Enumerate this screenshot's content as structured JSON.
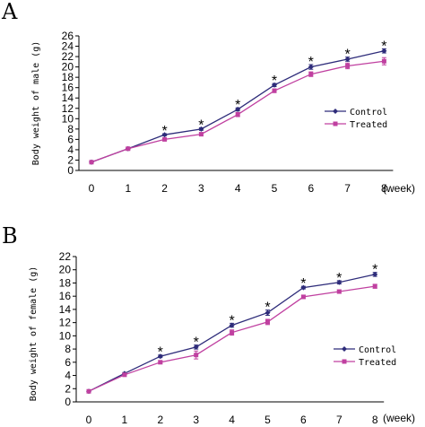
{
  "colors": {
    "control": "#2E2C7A",
    "treated": "#C040A0",
    "axis": "#000000"
  },
  "chart_data": [
    {
      "type": "line",
      "panel": "A",
      "xunit": "(week)",
      "ylabel": "Body weight of male (g)",
      "x": [
        0,
        1,
        2,
        3,
        4,
        5,
        6,
        7,
        8
      ],
      "ylim": [
        0,
        26
      ],
      "yticks": [
        0,
        2,
        4,
        6,
        8,
        10,
        12,
        14,
        16,
        18,
        20,
        22,
        24,
        26
      ],
      "legend": "right",
      "series": [
        {
          "name": "Control",
          "values": [
            1.6,
            4.2,
            6.9,
            8.0,
            11.8,
            16.5,
            20.0,
            21.5,
            23.1
          ],
          "errors": [
            0.15,
            0.15,
            0.2,
            0.25,
            0.3,
            0.3,
            0.45,
            0.4,
            0.4
          ]
        },
        {
          "name": "Treated",
          "values": [
            1.6,
            4.2,
            6.0,
            7.0,
            10.8,
            15.4,
            18.6,
            20.2,
            21.1
          ],
          "errors": [
            0.15,
            0.15,
            0.2,
            0.3,
            0.4,
            0.35,
            0.45,
            0.55,
            0.7
          ]
        }
      ],
      "significant_marks": [
        "*",
        "*",
        "*",
        "*",
        "*",
        "*",
        "*"
      ],
      "significant_at": [
        2,
        3,
        4,
        5,
        6,
        7,
        8
      ]
    },
    {
      "type": "line",
      "panel": "B",
      "xunit": "(week)",
      "ylabel": "Body weight of female (g)",
      "x": [
        0,
        1,
        2,
        3,
        4,
        5,
        6,
        7,
        8
      ],
      "ylim": [
        0,
        22
      ],
      "yticks": [
        0,
        2,
        4,
        6,
        8,
        10,
        12,
        14,
        16,
        18,
        20,
        22
      ],
      "legend": "bottom-right",
      "series": [
        {
          "name": "Control",
          "values": [
            1.6,
            4.3,
            6.9,
            8.3,
            11.6,
            13.5,
            17.3,
            18.1,
            19.3
          ],
          "errors": [
            0.15,
            0.15,
            0.2,
            0.3,
            0.3,
            0.4,
            0.2,
            0.25,
            0.3
          ]
        },
        {
          "name": "Treated",
          "values": [
            1.6,
            4.1,
            6.0,
            7.1,
            10.5,
            12.1,
            15.9,
            16.7,
            17.5
          ],
          "errors": [
            0.15,
            0.15,
            0.2,
            0.6,
            0.4,
            0.4,
            0.25,
            0.25,
            0.3
          ]
        }
      ],
      "significant_marks": [
        "*",
        "*",
        "*",
        "*",
        "*",
        "*",
        "*"
      ],
      "significant_at": [
        2,
        3,
        4,
        5,
        6,
        7,
        8
      ]
    }
  ]
}
